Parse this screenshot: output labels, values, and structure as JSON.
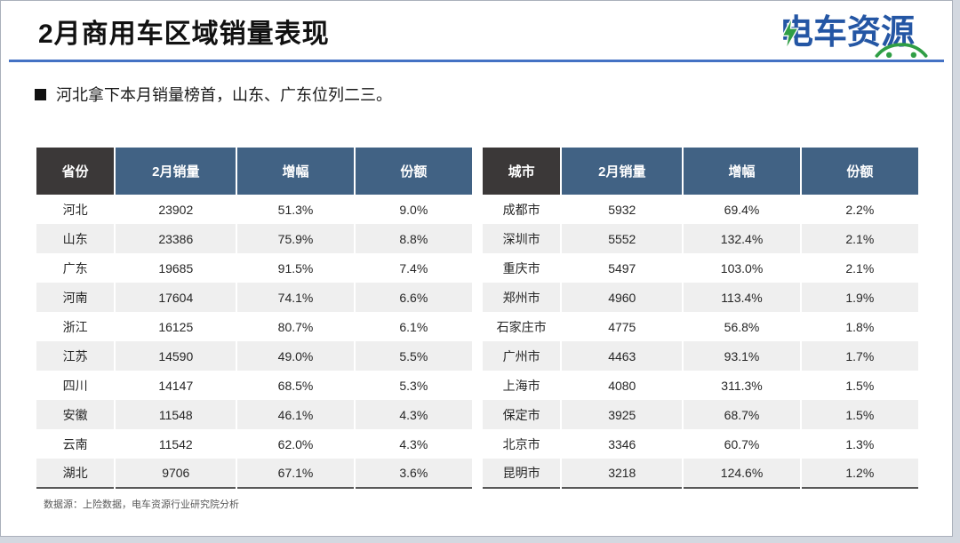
{
  "slide": {
    "title": "2月商用车区域销量表现",
    "logo_text": "电车资源",
    "bullet": "河北拿下本月销量榜首，山东、广东位列二三。",
    "source": "数据源：上险数据，电车资源行业研究院分析",
    "colors": {
      "accent_blue": "#4472C4",
      "header_dark": "#3B3838",
      "header_blue": "#416284",
      "row_alt": "#EFEFEF",
      "logo_blue": "#2456A4",
      "logo_green": "#2F9E45"
    }
  },
  "province_table": {
    "headers": [
      "省份",
      "2月销量",
      "增幅",
      "份额"
    ],
    "col_widths": [
      "18%",
      "28%",
      "27%",
      "27%"
    ],
    "rows": [
      [
        "河北",
        "23902",
        "51.3%",
        "9.0%"
      ],
      [
        "山东",
        "23386",
        "75.9%",
        "8.8%"
      ],
      [
        "广东",
        "19685",
        "91.5%",
        "7.4%"
      ],
      [
        "河南",
        "17604",
        "74.1%",
        "6.6%"
      ],
      [
        "浙江",
        "16125",
        "80.7%",
        "6.1%"
      ],
      [
        "江苏",
        "14590",
        "49.0%",
        "5.5%"
      ],
      [
        "四川",
        "14147",
        "68.5%",
        "5.3%"
      ],
      [
        "安徽",
        "11548",
        "46.1%",
        "4.3%"
      ],
      [
        "云南",
        "11542",
        "62.0%",
        "4.3%"
      ],
      [
        "湖北",
        "9706",
        "67.1%",
        "3.6%"
      ]
    ]
  },
  "city_table": {
    "headers": [
      "城市",
      "2月销量",
      "增幅",
      "份额"
    ],
    "col_widths": [
      "18%",
      "28%",
      "27%",
      "27%"
    ],
    "rows": [
      [
        "成都市",
        "5932",
        "69.4%",
        "2.2%"
      ],
      [
        "深圳市",
        "5552",
        "132.4%",
        "2.1%"
      ],
      [
        "重庆市",
        "5497",
        "103.0%",
        "2.1%"
      ],
      [
        "郑州市",
        "4960",
        "113.4%",
        "1.9%"
      ],
      [
        "石家庄市",
        "4775",
        "56.8%",
        "1.8%"
      ],
      [
        "广州市",
        "4463",
        "93.1%",
        "1.7%"
      ],
      [
        "上海市",
        "4080",
        "311.3%",
        "1.5%"
      ],
      [
        "保定市",
        "3925",
        "68.7%",
        "1.5%"
      ],
      [
        "北京市",
        "3346",
        "60.7%",
        "1.3%"
      ],
      [
        "昆明市",
        "3218",
        "124.6%",
        "1.2%"
      ]
    ]
  }
}
